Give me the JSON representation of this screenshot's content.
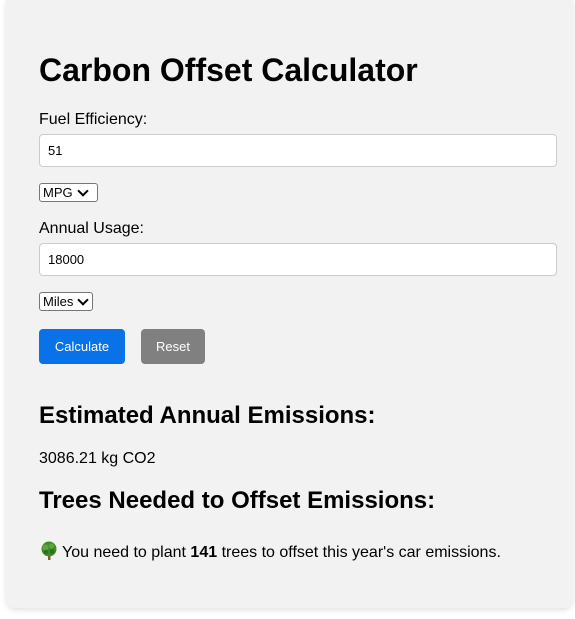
{
  "title": "Carbon Offset Calculator",
  "fuel_efficiency": {
    "label": "Fuel Efficiency:",
    "value": "51",
    "unit_selected": "MPG"
  },
  "annual_usage": {
    "label": "Annual Usage:",
    "value": "18000",
    "unit_selected": "Miles"
  },
  "buttons": {
    "calculate": "Calculate",
    "reset": "Reset"
  },
  "emissions": {
    "heading": "Estimated Annual Emissions:",
    "value": "3086.21 kg CO2"
  },
  "trees": {
    "heading": "Trees Needed to Offset Emissions:",
    "icon": "tree-icon",
    "prefix": "You need to plant",
    "count": "141",
    "suffix": "trees to offset this year's car emissions."
  },
  "colors": {
    "primary_button": "#0a72e8",
    "secondary_button": "#808080",
    "card_background": "#f2f2f2"
  }
}
